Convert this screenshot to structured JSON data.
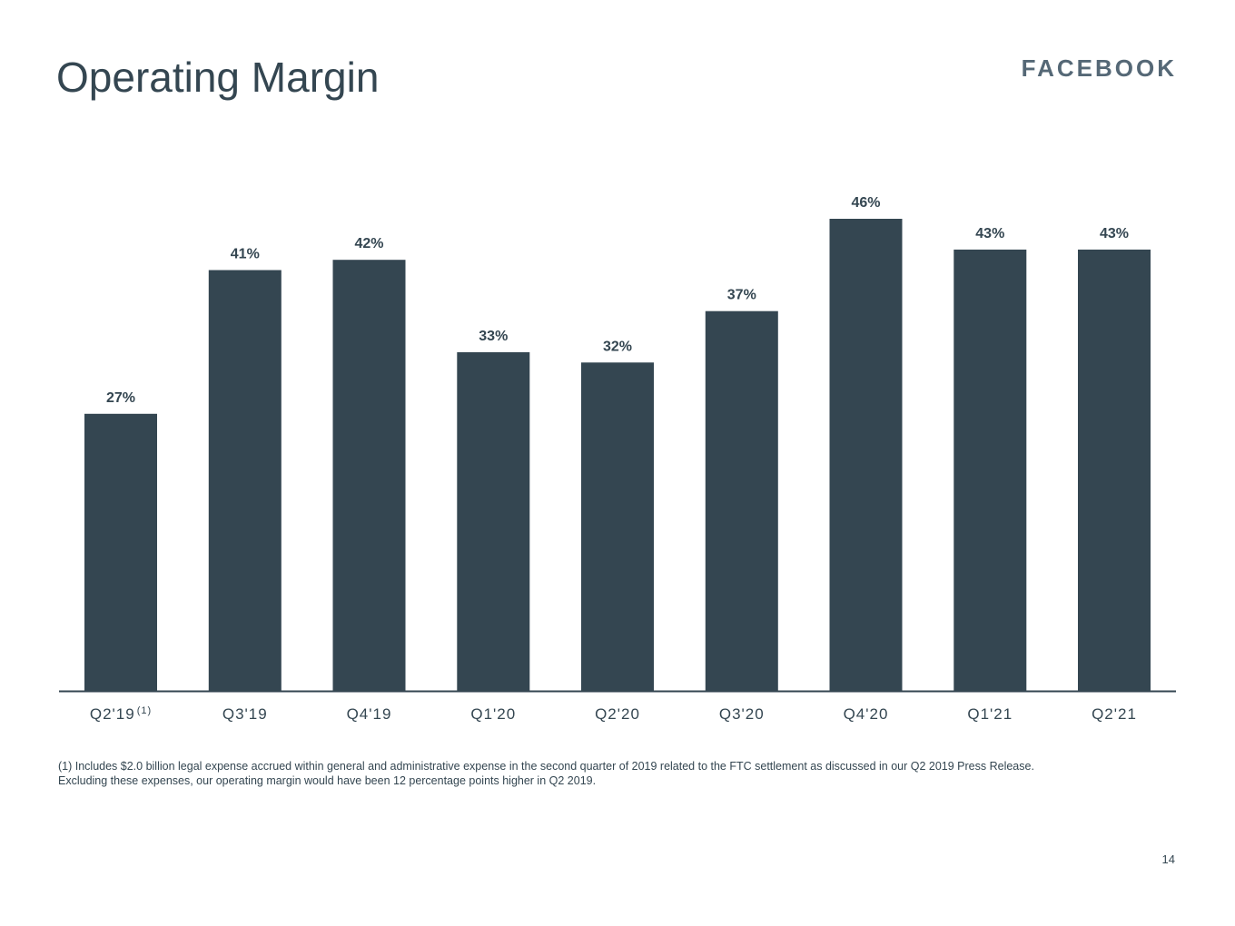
{
  "slide": {
    "title": "Operating Margin",
    "brand": "FACEBOOK",
    "page_number": "14",
    "footnote_line1": "(1) Includes $2.0 billion legal expense accrued within general and administrative expense in the second quarter of 2019 related to the FTC settlement as discussed in our Q2 2019 Press Release.",
    "footnote_line2": "Excluding these expenses, our operating margin would have been 12 percentage points higher in Q2 2019."
  },
  "chart_data": {
    "type": "bar",
    "title": "Operating Margin",
    "categories": [
      "Q2'19",
      "Q3'19",
      "Q4'19",
      "Q1'20",
      "Q2'20",
      "Q3'20",
      "Q4'20",
      "Q1'21",
      "Q2'21"
    ],
    "category_superscripts": [
      "(1)",
      "",
      "",
      "",
      "",
      "",
      "",
      "",
      ""
    ],
    "values": [
      27,
      41,
      42,
      33,
      32,
      37,
      46,
      43,
      43
    ],
    "value_labels": [
      "27%",
      "41%",
      "42%",
      "33%",
      "32%",
      "37%",
      "46%",
      "43%",
      "43%"
    ],
    "unit": "%",
    "ylim": [
      0,
      46
    ],
    "grid": false,
    "legend": "none",
    "colors": {
      "bar": "#344651",
      "axis": "#344651"
    }
  }
}
